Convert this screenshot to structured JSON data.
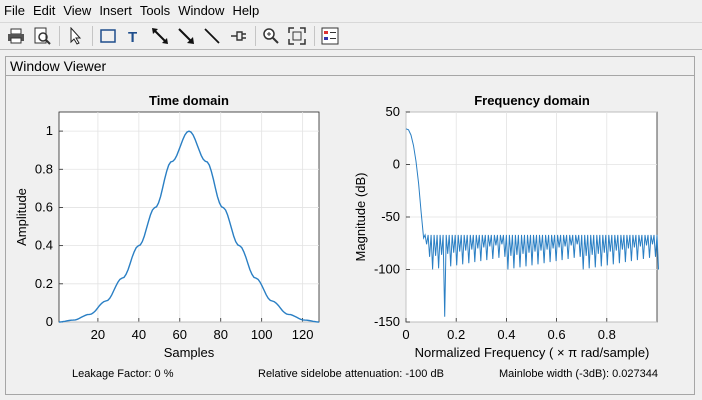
{
  "menu": [
    "File",
    "Edit",
    "View",
    "Insert",
    "Tools",
    "Window",
    "Help"
  ],
  "toolbar_icons": [
    "print-icon",
    "print-preview-icon",
    "pointer-icon",
    "rectangle-icon",
    "text-icon",
    "double-arrow-icon",
    "arrow-icon",
    "line-icon",
    "pin-icon",
    "zoom-in-icon",
    "fit-icon",
    "legend-icon"
  ],
  "panel": {
    "title": "Window Viewer"
  },
  "status": {
    "leakage": "Leakage Factor: 0 %",
    "sidelobe": "Relative sidelobe attenuation: -100 dB",
    "mainlobe": "Mainlobe width (-3dB): 0.027344"
  },
  "chart_data": [
    {
      "type": "line",
      "title": "Time domain",
      "xlabel": "Samples",
      "ylabel": "Amplitude",
      "xlim": [
        1,
        128
      ],
      "ylim": [
        0,
        1.1
      ],
      "xticks": [
        20,
        40,
        60,
        80,
        100,
        120
      ],
      "yticks": [
        0,
        0.2,
        0.4,
        0.6,
        0.8,
        1
      ],
      "grid": true,
      "color": "#2a7fc4",
      "series": [
        {
          "x": [
            1,
            8,
            16,
            24,
            32,
            40,
            48,
            56,
            64.5,
            73,
            81,
            89,
            97,
            105,
            113,
            121,
            128
          ],
          "y": [
            0.0,
            0.01,
            0.04,
            0.11,
            0.23,
            0.4,
            0.6,
            0.84,
            1.0,
            0.84,
            0.6,
            0.4,
            0.23,
            0.11,
            0.04,
            0.01,
            0.0
          ]
        }
      ]
    },
    {
      "type": "line",
      "title": "Frequency domain",
      "xlabel": "Normalized Frequency  ( × π  rad/sample)",
      "ylabel": "Magnitude (dB)",
      "xlim": [
        0,
        1
      ],
      "ylim": [
        -150,
        50
      ],
      "xticks": [
        0,
        0.2,
        0.4,
        0.6,
        0.8
      ],
      "yticks": [
        -150,
        -100,
        -50,
        0,
        50
      ],
      "grid": true,
      "color": "#2a7fc4",
      "mainlobe": {
        "x": [
          0,
          0.01,
          0.02,
          0.03,
          0.04,
          0.05,
          0.06,
          0.07
        ],
        "y": [
          34,
          33,
          28,
          18,
          3,
          -18,
          -45,
          -70
        ]
      },
      "sidelobe_envelope_db": -68,
      "sidelobe_min_db": -145
    }
  ]
}
